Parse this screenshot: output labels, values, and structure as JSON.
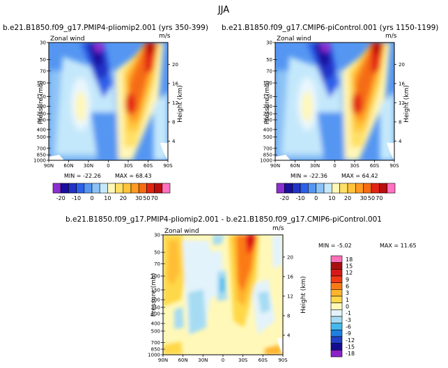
{
  "chart_data": [
    {
      "type": "contour",
      "main_title": "JJA",
      "title": "b.e21.B1850.f09_g17.PMIP4-pliomip2.001 (yrs 350-399)",
      "variable_label": "Zonal wind",
      "units": "m/s",
      "ylabel": "Pressure (mb)",
      "ylabel_right": "Height (km)",
      "x_ticks": [
        "90N",
        "60N",
        "30N",
        "0",
        "30S",
        "60S",
        "90S"
      ],
      "y_ticks": [
        "30",
        "50",
        "70",
        "100",
        "150",
        "200",
        "250",
        "300",
        "400",
        "500",
        "700",
        "850",
        "1000"
      ],
      "y_ticks_right": [
        "20",
        "16",
        "12",
        "8",
        "4"
      ],
      "min_label": "MIN = -22.26",
      "max_label": "MAX = 68.43",
      "min_value": -22.26,
      "max_value": 68.43,
      "colorbar_orientation": "horizontal",
      "colorbar_labels": [
        "-20",
        "-10",
        "0",
        "10",
        "20",
        "30",
        "50",
        "70"
      ],
      "colorbar_levels": [
        -25,
        -20,
        -15,
        -10,
        -5,
        0,
        5,
        10,
        15,
        20,
        25,
        30,
        40,
        50,
        60,
        70
      ]
    },
    {
      "type": "contour",
      "title": "b.e21.B1850.f09_g17.CMIP6-piControl.001 (yrs 1150-1199)",
      "variable_label": "Zonal wind",
      "units": "m/s",
      "ylabel": "Pressure (mb)",
      "ylabel_right": "Height (km)",
      "x_ticks": [
        "90N",
        "60N",
        "30N",
        "0",
        "30S",
        "60S",
        "90S"
      ],
      "y_ticks": [
        "30",
        "50",
        "70",
        "100",
        "150",
        "200",
        "250",
        "300",
        "400",
        "500",
        "700",
        "850",
        "1000"
      ],
      "y_ticks_right": [
        "20",
        "16",
        "12",
        "8",
        "4"
      ],
      "min_label": "MIN = -22.36",
      "max_label": "MAX = 64.42",
      "min_value": -22.36,
      "max_value": 64.42,
      "colorbar_orientation": "horizontal",
      "colorbar_labels": [
        "-20",
        "-10",
        "0",
        "10",
        "20",
        "30",
        "50",
        "70"
      ],
      "colorbar_levels": [
        -25,
        -20,
        -15,
        -10,
        -5,
        0,
        5,
        10,
        15,
        20,
        25,
        30,
        40,
        50,
        60,
        70
      ]
    },
    {
      "type": "contour",
      "title": "b.e21.B1850.f09_g17.PMIP4-pliomip2.001 - b.e21.B1850.f09_g17.CMIP6-piControl.001",
      "variable_label": "Zonal wind",
      "units": "m/s",
      "ylabel": "Pressure (mb)",
      "ylabel_right": "Height (km)",
      "x_ticks": [
        "90N",
        "60N",
        "30N",
        "0",
        "30S",
        "60S",
        "90S"
      ],
      "y_ticks": [
        "30",
        "50",
        "70",
        "100",
        "150",
        "200",
        "250",
        "300",
        "400",
        "500",
        "700",
        "850",
        "1000"
      ],
      "y_ticks_right": [
        "20",
        "16",
        "12",
        "8",
        "4"
      ],
      "min_label": "MIN = -5.02",
      "max_label": "MAX = 11.65",
      "min_value": -5.02,
      "max_value": 11.65,
      "colorbar_orientation": "vertical",
      "colorbar_labels": [
        "18",
        "15",
        "12",
        "9",
        "6",
        "3",
        "1",
        "0",
        "-1",
        "-3",
        "-6",
        "-9",
        "-12",
        "-15",
        "-18"
      ],
      "colorbar_levels": [
        18,
        15,
        12,
        9,
        6,
        3,
        1,
        0,
        -1,
        -3,
        -6,
        -9,
        -12,
        -15,
        -18
      ]
    }
  ],
  "colors": {
    "abs_scale": [
      "#8c2fd0",
      "#1a0f9e",
      "#2233c6",
      "#2d5fe8",
      "#5596f2",
      "#8cc2f5",
      "#c4e8fb",
      "#fff7b8",
      "#ffe066",
      "#ffc43a",
      "#ff9b22",
      "#f56c12",
      "#e32412",
      "#b80e0e",
      "#ff70c0"
    ],
    "diff_scale": [
      "#ff70b8",
      "#a81010",
      "#d81818",
      "#f23a14",
      "#fb7a18",
      "#ffb42d",
      "#ffd84a",
      "#fff8b8",
      "#e3f3fb",
      "#a6dcf3",
      "#45b8ec",
      "#1f7fe0",
      "#2340c8",
      "#140c90",
      "#8a22c8"
    ]
  }
}
